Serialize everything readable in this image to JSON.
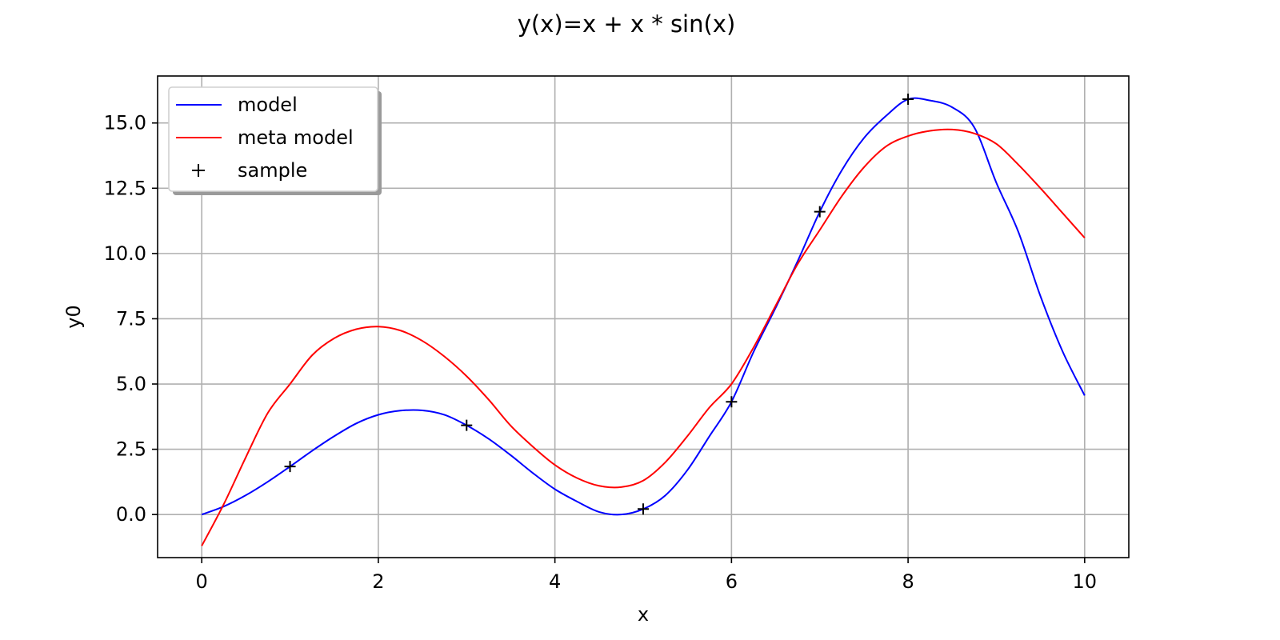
{
  "chart_data": {
    "type": "line",
    "title": "y(x)=x + x * sin(x)",
    "xlabel": "x",
    "ylabel": "y0",
    "xlim": [
      -0.5,
      10.5
    ],
    "ylim": [
      -1.65,
      16.8
    ],
    "x_ticks": [
      0,
      2,
      4,
      6,
      8,
      10
    ],
    "x_tick_labels": [
      "0",
      "2",
      "4",
      "6",
      "8",
      "10"
    ],
    "y_ticks": [
      0,
      2.5,
      5,
      7.5,
      10,
      12.5,
      15
    ],
    "y_tick_labels": [
      "0.0",
      "2.5",
      "5.0",
      "7.5",
      "10.0",
      "12.5",
      "15.0"
    ],
    "grid": true,
    "legend_position": "top-left",
    "series": [
      {
        "name": "model",
        "kind": "line",
        "color": "#0000ff",
        "x": [
          0,
          0.25,
          0.5,
          0.75,
          1,
          1.25,
          1.5,
          1.75,
          2,
          2.25,
          2.5,
          2.75,
          3,
          3.25,
          3.5,
          3.75,
          4,
          4.25,
          4.5,
          4.75,
          5,
          5.25,
          5.5,
          5.75,
          6,
          6.25,
          6.5,
          6.75,
          7,
          7.25,
          7.5,
          7.75,
          8,
          8.25,
          8.5,
          8.75,
          9,
          9.25,
          9.5,
          9.75,
          10
        ],
        "y": [
          0,
          0.31,
          0.74,
          1.26,
          1.84,
          2.44,
          3.0,
          3.49,
          3.82,
          3.98,
          3.99,
          3.82,
          3.42,
          2.9,
          2.27,
          1.59,
          0.97,
          0.5,
          0.1,
          0.0,
          0.21,
          0.73,
          1.7,
          3.0,
          4.32,
          6.23,
          7.92,
          9.71,
          11.6,
          13.19,
          14.42,
          15.27,
          15.91,
          15.86,
          15.6,
          14.83,
          12.71,
          10.82,
          8.36,
          6.25,
          4.56
        ]
      },
      {
        "name": "meta model",
        "kind": "line",
        "color": "#ff0000",
        "x": [
          0,
          0.25,
          0.5,
          0.75,
          1,
          1.25,
          1.5,
          1.75,
          2,
          2.25,
          2.5,
          2.75,
          3,
          3.25,
          3.5,
          3.75,
          4,
          4.25,
          4.5,
          4.75,
          5,
          5.25,
          5.5,
          5.75,
          6,
          6.25,
          6.5,
          6.75,
          7,
          7.25,
          7.5,
          7.75,
          8,
          8.25,
          8.5,
          8.75,
          9,
          9.25,
          9.5,
          9.75,
          10
        ],
        "y": [
          -1.2,
          0.4,
          2.2,
          3.9,
          5.0,
          6.1,
          6.75,
          7.1,
          7.2,
          7.05,
          6.65,
          6.05,
          5.3,
          4.4,
          3.4,
          2.6,
          1.9,
          1.4,
          1.1,
          1.05,
          1.3,
          2.0,
          3.0,
          4.1,
          5.0,
          6.4,
          8.0,
          9.6,
          10.9,
          12.2,
          13.3,
          14.1,
          14.5,
          14.7,
          14.75,
          14.6,
          14.2,
          13.4,
          12.5,
          11.55,
          10.6
        ]
      },
      {
        "name": "sample",
        "kind": "scatter",
        "marker": "+",
        "color": "#000000",
        "x": [
          1,
          3,
          5,
          6,
          7,
          8
        ],
        "y": [
          1.84,
          3.42,
          0.21,
          4.32,
          11.6,
          15.91
        ]
      }
    ]
  }
}
